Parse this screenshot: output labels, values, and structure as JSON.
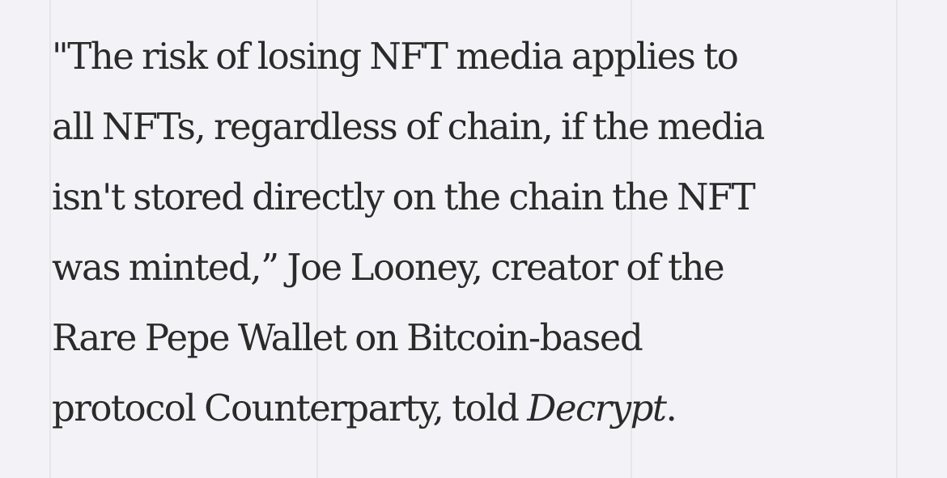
{
  "article": {
    "paragraph_lines": [
      "\"The risk of losing NFT media applies to",
      "all NFTs, regardless of chain, if the media",
      "isn't stored directly on the chain the NFT",
      "was minted,” Joe Looney, creator of the",
      "Rare Pepe Wallet on Bitcoin-based",
      "protocol Counterparty, told "
    ],
    "publication_name": "Decrypt",
    "closing_punctuation": "."
  }
}
